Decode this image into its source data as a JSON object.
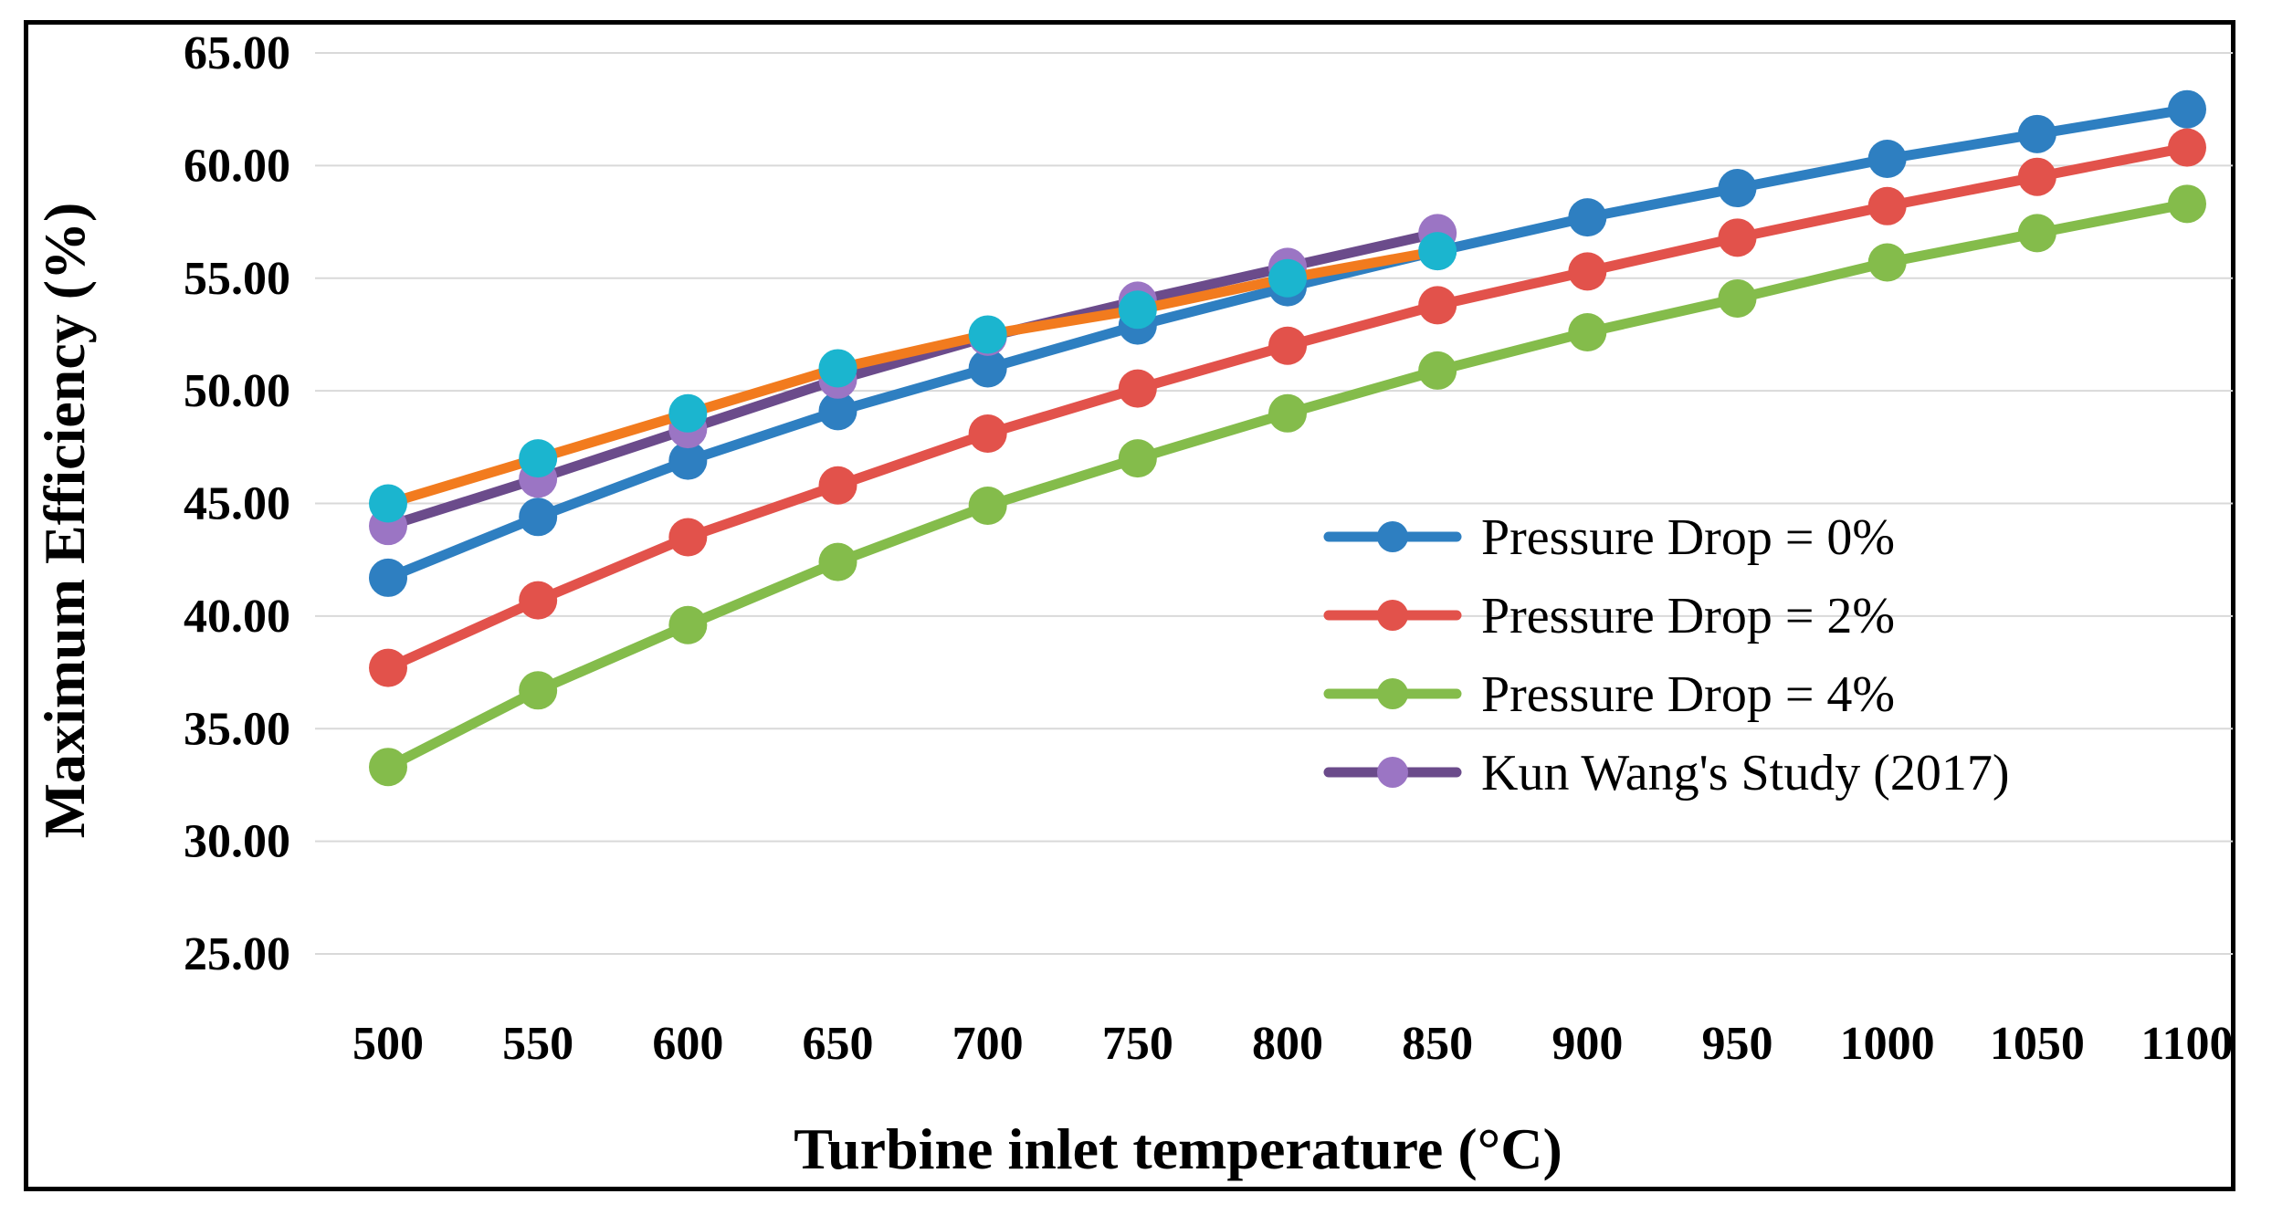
{
  "chart_data": {
    "type": "line",
    "title": "",
    "xlabel": "Turbine inlet temperature (°C)",
    "ylabel": "Maximum Efficiency  (%)",
    "ylim": [
      25,
      65
    ],
    "y_ticks": [
      "25.00",
      "30.00",
      "35.00",
      "40.00",
      "45.00",
      "50.00",
      "55.00",
      "60.00",
      "65.00"
    ],
    "categories": [
      "500",
      "550",
      "600",
      "650",
      "700",
      "750",
      "800",
      "850",
      "900",
      "950",
      "1000",
      "1050",
      "1100"
    ],
    "grid": "horizontal",
    "legend_position": "right-center",
    "series": [
      {
        "name": "Pressure Drop = 0%",
        "color": "#2E7FC1",
        "in_legend": true,
        "values": [
          41.7,
          44.4,
          46.9,
          49.1,
          51.0,
          52.9,
          54.6,
          56.2,
          57.7,
          59.0,
          60.3,
          61.4,
          62.5
        ]
      },
      {
        "name": "Pressure Drop = 2%",
        "color": "#E2524B",
        "in_legend": true,
        "values": [
          37.7,
          40.7,
          43.5,
          45.8,
          48.1,
          50.1,
          52.0,
          53.8,
          55.3,
          56.8,
          58.2,
          59.5,
          60.8
        ]
      },
      {
        "name": "Pressure Drop = 4%",
        "color": "#84BC4B",
        "in_legend": true,
        "values": [
          33.3,
          36.7,
          39.6,
          42.4,
          44.9,
          47.0,
          49.0,
          50.9,
          52.6,
          54.1,
          55.7,
          57.0,
          58.3
        ]
      },
      {
        "name": "Kun Wang's Study (2017)",
        "color": "#6B4B8B",
        "marker_color": "#9B75C4",
        "in_legend": true,
        "values": [
          44.0,
          46.1,
          48.3,
          50.5,
          52.4,
          54.0,
          55.5,
          57.0,
          null,
          null,
          null,
          null,
          null
        ]
      },
      {
        "name": "Unlabeled (orange)",
        "color": "#F27B1E",
        "marker_color": "#1BB5CF",
        "in_legend": false,
        "values": [
          45.0,
          47.0,
          49.0,
          51.0,
          52.5,
          53.6,
          55.0,
          56.2,
          null,
          null,
          null,
          null,
          null
        ]
      }
    ]
  }
}
